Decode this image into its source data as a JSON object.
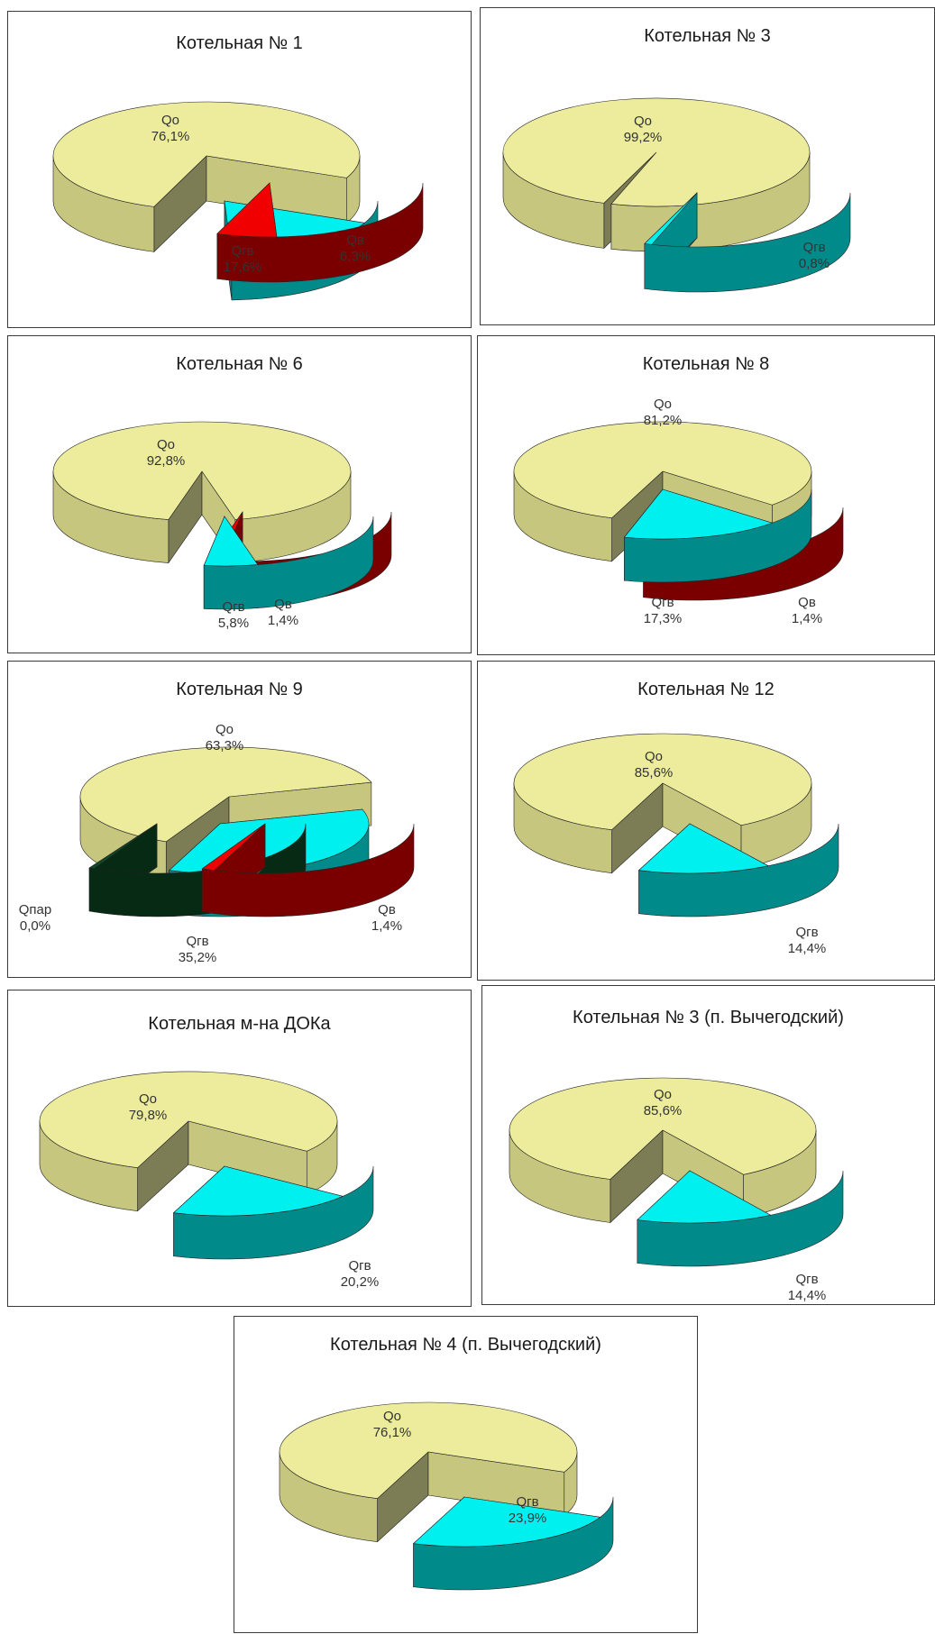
{
  "colors": {
    "Qo_top": "#ecec9c",
    "Qo_side": "#c6c67e",
    "Qo_inner": "#7d7d55",
    "Qgv_top": "#00f0f0",
    "Qgv_side": "#008a8a",
    "Qgv_side2": "#00a8a8",
    "Qv_top": "#f00000",
    "Qv_side": "#7a0000",
    "Qpar_top": "#0e4a26",
    "Qpar_side": "#062a14"
  },
  "chart_data": [
    {
      "type": "pie",
      "title": "Котельная № 1",
      "slices": [
        {
          "label": "Qо",
          "pct": "76,1%",
          "value": 76.1
        },
        {
          "label": "Qгв",
          "pct": "17,6%",
          "value": 17.6
        },
        {
          "label": "Qв",
          "pct": "6,3%",
          "value": 6.3
        }
      ]
    },
    {
      "type": "pie",
      "title": "Котельная № 3",
      "slices": [
        {
          "label": "Qо",
          "pct": "99,2%",
          "value": 99.2
        },
        {
          "label": "Qгв",
          "pct": "0,8%",
          "value": 0.8
        }
      ]
    },
    {
      "type": "pie",
      "title": "Котельная № 6",
      "slices": [
        {
          "label": "Qо",
          "pct": "92,8%",
          "value": 92.8
        },
        {
          "label": "Qгв",
          "pct": "5,8%",
          "value": 5.8
        },
        {
          "label": "Qв",
          "pct": "1,4%",
          "value": 1.4
        }
      ]
    },
    {
      "type": "pie",
      "title": "Котельная № 8",
      "slices": [
        {
          "label": "Qо",
          "pct": "81,2%",
          "value": 81.2
        },
        {
          "label": "Qгв",
          "pct": "17,3%",
          "value": 17.3
        },
        {
          "label": "Qв",
          "pct": "1,4%",
          "value": 1.4
        }
      ]
    },
    {
      "type": "pie",
      "title": "Котельная № 9",
      "slices": [
        {
          "label": "Qо",
          "pct": "63,3%",
          "value": 63.3
        },
        {
          "label": "Qгв",
          "pct": "35,2%",
          "value": 35.2
        },
        {
          "label": "Qв",
          "pct": "1,4%",
          "value": 1.4
        },
        {
          "label": "Qпар",
          "pct": "0,0%",
          "value": 0.0
        }
      ]
    },
    {
      "type": "pie",
      "title": "Котельная № 12",
      "slices": [
        {
          "label": "Qо",
          "pct": "85,6%",
          "value": 85.6
        },
        {
          "label": "Qгв",
          "pct": "14,4%",
          "value": 14.4
        }
      ]
    },
    {
      "type": "pie",
      "title": "Котельная м-на ДОКа",
      "slices": [
        {
          "label": "Qо",
          "pct": "79,8%",
          "value": 79.8
        },
        {
          "label": "Qгв",
          "pct": "20,2%",
          "value": 20.2
        }
      ]
    },
    {
      "type": "pie",
      "title": "Котельная № 3 (п. Вычегодский)",
      "slices": [
        {
          "label": "Qо",
          "pct": "85,6%",
          "value": 85.6
        },
        {
          "label": "Qгв",
          "pct": "14,4%",
          "value": 14.4
        }
      ]
    },
    {
      "type": "pie",
      "title": "Котельная № 4 (п. Вычегодский)",
      "slices": [
        {
          "label": "Qо",
          "pct": "76,1%",
          "value": 76.1
        },
        {
          "label": "Qгв",
          "pct": "23,9%",
          "value": 23.9
        }
      ]
    }
  ]
}
